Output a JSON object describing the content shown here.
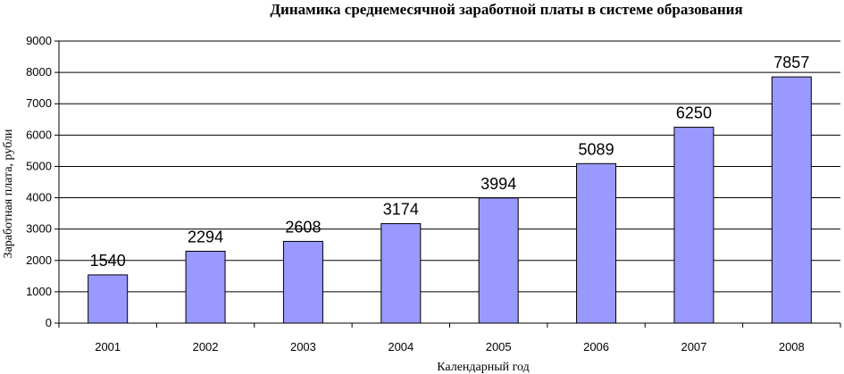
{
  "chart_data": {
    "type": "bar",
    "title": "Динамика среднемесячной заработной платы в  системе образования",
    "xlabel": "Календарный год",
    "ylabel": "Заработная плата, рубли",
    "categories": [
      "2001",
      "2002",
      "2003",
      "2004",
      "2005",
      "2006",
      "2007",
      "2008"
    ],
    "values": [
      1540,
      2294,
      2608,
      3174,
      3994,
      5089,
      6250,
      7857
    ],
    "ylim": [
      0,
      9000
    ],
    "yticks": [
      "0",
      "1000",
      "2000",
      "3000",
      "4000",
      "5000",
      "6000",
      "7000",
      "8000",
      "9000"
    ],
    "grid": true,
    "legend": "none",
    "bar_color": "#9999ff",
    "bar_outline": "#000000"
  }
}
